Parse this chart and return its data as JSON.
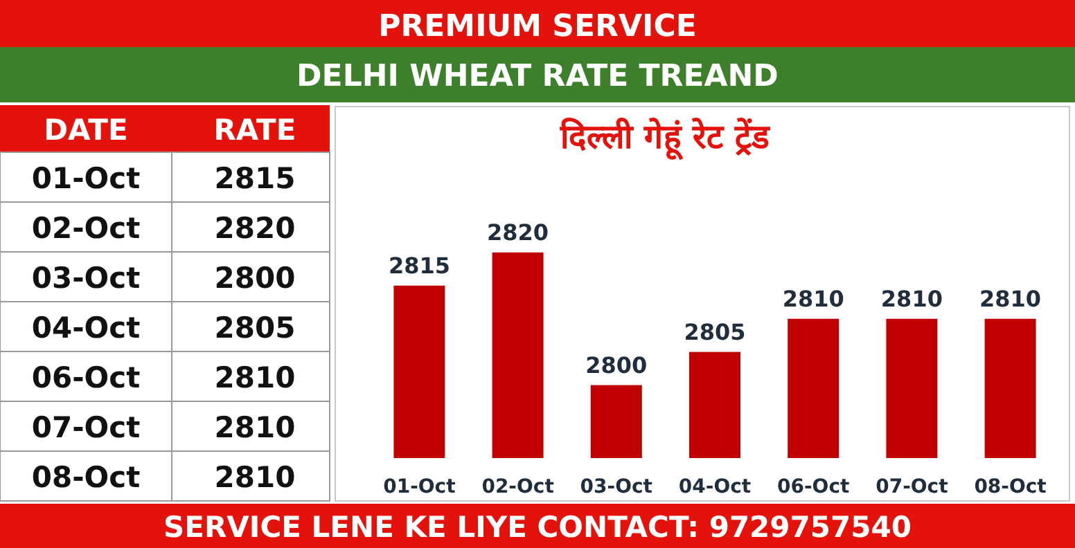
{
  "chart_data": [
    {
      "type": "other",
      "annotations": [
        "DATE",
        "RATE",
        "01-Oct",
        "2815",
        "02-Oct",
        "2820",
        "03-Oct",
        "2800",
        "04-Oct",
        "2805",
        "06-Oct",
        "2810",
        "07-Oct",
        "2810",
        "08-Oct",
        "2810"
      ]
    },
    {
      "type": "bar",
      "title": "DELHI WHEAT RATE TREAND",
      "subtitle": "दिल्ली गेहूं रेट ट्रेंड",
      "annotations": [
        "PREMIUM SERVICE",
        "SERVICE LENE KE LIYE CONTACT: 9729757540"
      ],
      "categories": [
        "01-Oct",
        "02-Oct",
        "03-Oct",
        "04-Oct",
        "06-Oct",
        "07-Oct",
        "08-Oct"
      ],
      "values": [
        2815,
        2820,
        2800,
        2805,
        2810,
        2810,
        2810
      ],
      "color": "#c00000",
      "ylim": [
        2789,
        2842
      ],
      "data_labels": true
    }
  ]
}
